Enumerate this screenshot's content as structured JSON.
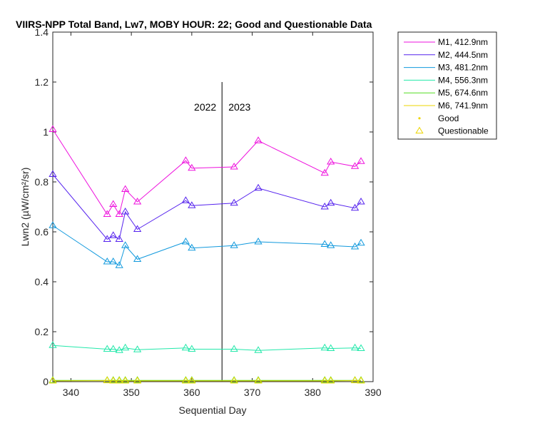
{
  "chart_data": {
    "type": "line",
    "title": "VIIRS-NPP Total Band, Lw7, MOBY HOUR: 22;  Good and Questionable Data",
    "xlabel": "Sequential Day",
    "ylabel": "Lwn2 (µW/cm²/sr)",
    "xlim": [
      337,
      390
    ],
    "ylim": [
      0,
      1.4
    ],
    "xticks": [
      340,
      350,
      360,
      370,
      380,
      390
    ],
    "yticks": [
      0,
      0.2,
      0.4,
      0.6,
      0.8,
      1.0,
      1.2,
      1.4
    ],
    "xtick_labels": [
      "340",
      "350",
      "360",
      "370",
      "380",
      "390"
    ],
    "ytick_labels": [
      "0",
      "0.2",
      "0.4",
      "0.6",
      "0.8",
      "1",
      "1.2",
      "1.4"
    ],
    "grid": false,
    "legend_position": "outside-top-right",
    "year_divider": {
      "x": 365,
      "y_top": 1.2,
      "left_label": "2022",
      "right_label": "2023",
      "label_y": 1.1
    },
    "marker_legend": [
      {
        "label": "Good",
        "marker": "dot",
        "color": "#EDD500"
      },
      {
        "label": "Questionable",
        "marker": "triangle",
        "color": "#EDD500"
      }
    ],
    "x": [
      337,
      346,
      347,
      348,
      349,
      351,
      359,
      360,
      367,
      371,
      382,
      383,
      387,
      388
    ],
    "series": [
      {
        "name": "M1, 412.9nm",
        "color": "#EE11DD",
        "values": [
          1.01,
          0.67,
          0.71,
          0.67,
          0.77,
          0.72,
          0.885,
          0.855,
          0.86,
          0.965,
          0.835,
          0.88,
          0.862,
          0.882
        ]
      },
      {
        "name": "M2, 444.5nm",
        "color": "#5522EE",
        "values": [
          0.83,
          0.57,
          0.585,
          0.57,
          0.68,
          0.61,
          0.725,
          0.705,
          0.715,
          0.775,
          0.7,
          0.715,
          0.695,
          0.72
        ]
      },
      {
        "name": "M3, 481.2nm",
        "color": "#1199DD",
        "values": [
          0.625,
          0.48,
          0.48,
          0.465,
          0.545,
          0.49,
          0.56,
          0.535,
          0.545,
          0.56,
          0.55,
          0.545,
          0.54,
          0.555
        ]
      },
      {
        "name": "M4, 556.3nm",
        "color": "#22E8AA",
        "values": [
          0.145,
          0.13,
          0.13,
          0.125,
          0.135,
          0.128,
          0.135,
          0.13,
          0.13,
          0.125,
          0.135,
          0.133,
          0.135,
          0.133
        ]
      },
      {
        "name": "M5, 674.6nm",
        "color": "#55DD22",
        "values": [
          0.005,
          0.005,
          0.005,
          0.005,
          0.005,
          0.005,
          0.005,
          0.005,
          0.005,
          0.005,
          0.005,
          0.005,
          0.005,
          0.005
        ]
      },
      {
        "name": "M6, 741.9nm",
        "color": "#EDD500",
        "values": [
          0.003,
          0.004,
          0.003,
          0.003,
          0.003,
          0.003,
          0.003,
          0.003,
          0.003,
          0.003,
          0.003,
          0.003,
          0.004,
          0.003
        ]
      }
    ]
  }
}
